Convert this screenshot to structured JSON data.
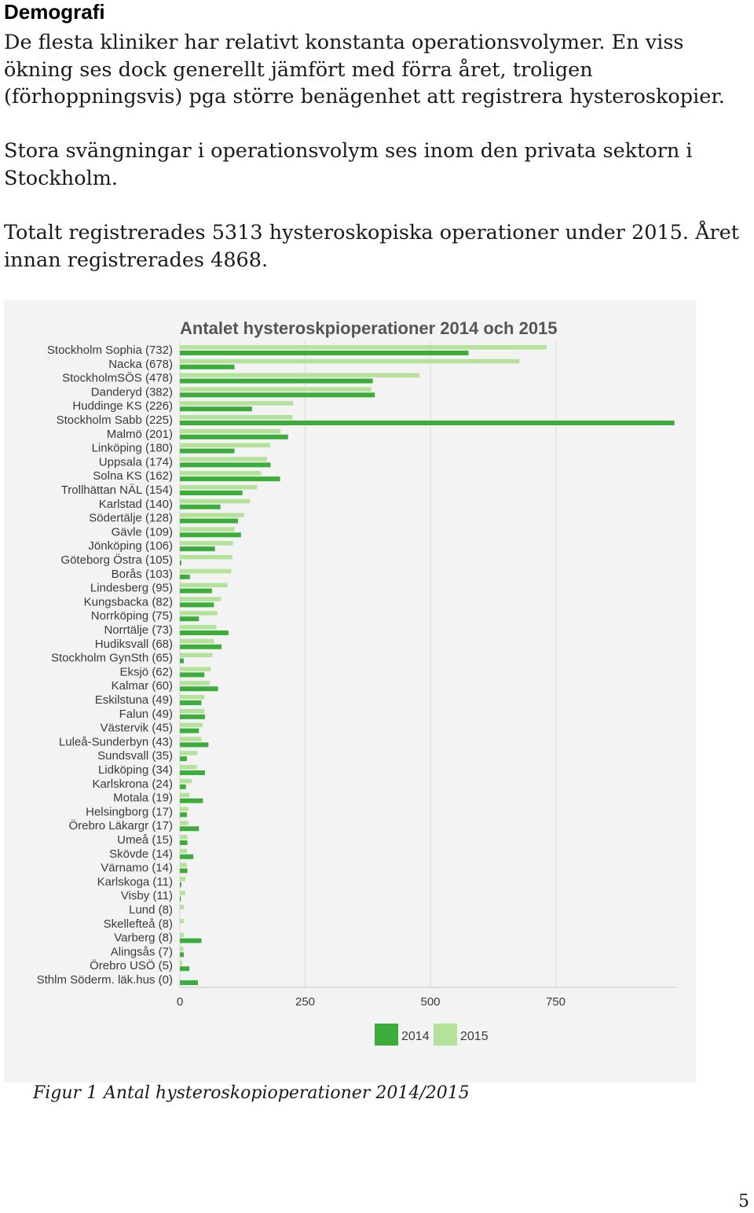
{
  "heading": "Demografi",
  "paragraphs": [
    "De flesta kliniker har relativt konstanta operationsvolymer. En viss ökning ses dock generellt jämfört med förra året, troligen (förhoppningsvis) pga större benägenhet att registrera hysteroskopier.",
    "Stora svängningar i operationsvolym ses inom den privata sektorn i Stockholm.",
    "Totalt registrerades 5313 hysteroskopiska operationer under 2015. Året innan registrerades 4868."
  ],
  "caption": {
    "number": "Figur 1",
    "text": "Antal hysteroskopioperationer 2014/2015"
  },
  "page_number": "5",
  "colors": {
    "series_2014": "#3cac3a",
    "series_2015": "#b5e29b",
    "grid": "#e2e2e2",
    "background": "#f3f3f3"
  },
  "chart_data": {
    "type": "bar",
    "orientation": "horizontal",
    "title": "Antalet hysteroskpioperationer 2014 och 2015",
    "xlabel": "",
    "ylabel": "",
    "xlim": [
      0,
      1000
    ],
    "x_ticks": [
      0,
      250,
      500,
      750
    ],
    "grid": true,
    "legend_position": "bottom-center",
    "categories": [
      "Stockholm Sophia (732)",
      "Nacka (678)",
      "StockholmSÖS (478)",
      "Danderyd (382)",
      "Huddinge KS (226)",
      "Stockholm Sabb (225)",
      "Malmö (201)",
      "Linköping (180)",
      "Uppsala (174)",
      "Solna KS (162)",
      "Trollhättan NÄL (154)",
      "Karlstad (140)",
      "Södertälje (128)",
      "Gävle (109)",
      "Jönköping (106)",
      "Göteborg Östra (105)",
      "Borås (103)",
      "Lindesberg (95)",
      "Kungsbacka (82)",
      "Norrköping (75)",
      "Norrtälje (73)",
      "Hudiksvall (68)",
      "Stockholm GynSth (65)",
      "Eksjö (62)",
      "Kalmar (60)",
      "Eskilstuna (49)",
      "Falun (49)",
      "Västervik (45)",
      "Luleå-Sunderbyn (43)",
      "Sundsvall (35)",
      "Lidköping (34)",
      "Karlskrona (24)",
      "Motala (19)",
      "Helsingborg (17)",
      "Örebro Läkargr (17)",
      "Umeå (15)",
      "Skövde (14)",
      "Värnamo (14)",
      "Karlskoga (11)",
      "Visby (11)",
      "Lund (8)",
      "Skellefteå (8)",
      "Varberg (8)",
      "Alingsås (7)",
      "Örebro USÖ (5)",
      "Sthlm Söderm. läk.hus (0)"
    ],
    "series": [
      {
        "name": "2014",
        "values": [
          576,
          109,
          385,
          389,
          144,
          987,
          216,
          109,
          181,
          200,
          125,
          81,
          116,
          122,
          70,
          3,
          20,
          64,
          68,
          38,
          97,
          83,
          8,
          49,
          76,
          43,
          50,
          38,
          57,
          14,
          50,
          12,
          46,
          14,
          38,
          15,
          27,
          15,
          3,
          2,
          0,
          0,
          43,
          8,
          19,
          36
        ]
      },
      {
        "name": "2015",
        "values": [
          732,
          678,
          478,
          382,
          226,
          225,
          201,
          180,
          174,
          162,
          154,
          140,
          128,
          109,
          106,
          105,
          103,
          95,
          82,
          75,
          73,
          68,
          65,
          62,
          60,
          49,
          49,
          45,
          43,
          35,
          34,
          24,
          19,
          17,
          17,
          15,
          14,
          14,
          11,
          11,
          8,
          8,
          8,
          7,
          5,
          0
        ]
      }
    ]
  }
}
